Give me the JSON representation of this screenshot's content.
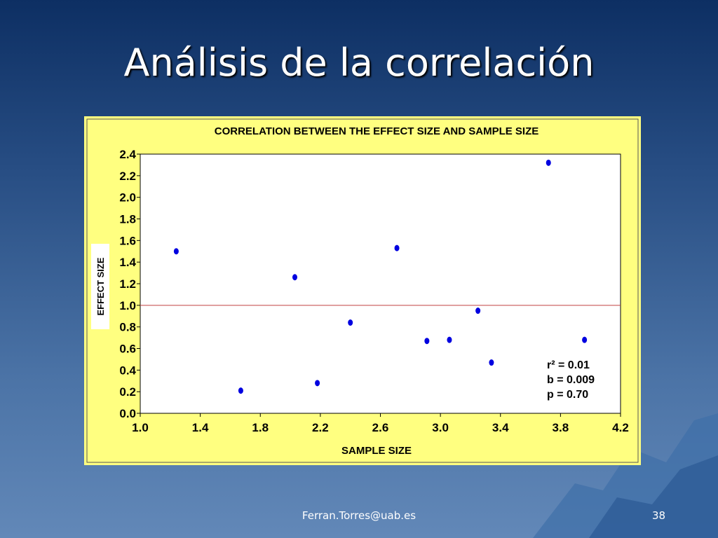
{
  "title": "Análisis de la correlación",
  "footer": {
    "email": "Ferran.Torres@uab.es",
    "page": "38"
  },
  "chart_data": {
    "type": "scatter",
    "title": "CORRELATION BETWEEN THE EFFECT SIZE AND SAMPLE SIZE",
    "x_label": "SAMPLE SIZE",
    "y_label": "EFFECT SIZE",
    "x": [
      1.24,
      1.67,
      2.03,
      2.18,
      2.4,
      2.71,
      2.91,
      3.06,
      3.25,
      3.34,
      3.72,
      3.96
    ],
    "values": [
      1.5,
      0.21,
      1.26,
      0.28,
      0.84,
      1.53,
      0.67,
      0.68,
      0.95,
      0.47,
      2.32,
      0.68
    ],
    "color": "#0000e0",
    "xlim": [
      1.0,
      4.2
    ],
    "xticks": [
      {
        "value": 1.0,
        "label": "1.0"
      },
      1.4,
      1.8,
      2.2,
      2.6,
      {
        "value": 3.0,
        "label": "3.0"
      },
      3.4,
      3.8,
      4.2
    ],
    "ylim": [
      0,
      2.4
    ],
    "yticks": [
      {
        "value": 0,
        "label": "0.0"
      },
      0.2,
      0.4,
      0.6,
      0.8,
      {
        "value": 1.0,
        "label": "1.0"
      },
      1.2,
      1.4,
      1.6,
      1.8,
      {
        "value": 2.0,
        "label": "2.0"
      },
      2.2,
      2.4
    ],
    "reference_line": {
      "value": 1.0,
      "color": "#c04040"
    },
    "annotations": [
      "r² = 0.01",
      "b = 0.009",
      "p = 0.70"
    ]
  }
}
